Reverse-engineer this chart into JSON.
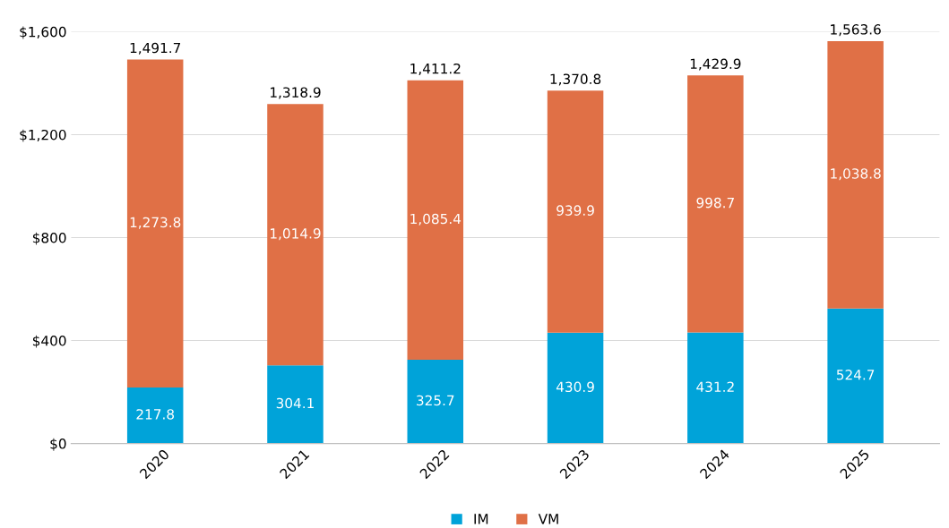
{
  "chart_data": {
    "type": "bar",
    "stacked": true,
    "categories": [
      "2020",
      "2021",
      "2022",
      "2023",
      "2024",
      "2025"
    ],
    "series": [
      {
        "name": "IM",
        "color": "#00a3d9",
        "values": [
          217.8,
          304.1,
          325.7,
          430.9,
          431.2,
          524.7
        ],
        "value_labels": [
          "217.8",
          "304.1",
          "325.7",
          "430.9",
          "431.2",
          "524.7"
        ]
      },
      {
        "name": "VM",
        "color": "#e07046",
        "values": [
          1273.8,
          1014.9,
          1085.4,
          939.9,
          998.7,
          1038.8
        ],
        "value_labels": [
          "1,273.8",
          "1,014.9",
          "1,085.4",
          "939.9",
          "998.7",
          "1,038.8"
        ]
      }
    ],
    "totals": [
      "1,491.7",
      "1,318.9",
      "1,411.2",
      "1,370.8",
      "1,429.9",
      "1,563.6"
    ],
    "ylim": [
      0,
      1600
    ],
    "yticks": [
      {
        "value": 0,
        "label": "$0"
      },
      {
        "value": 400,
        "label": "$400"
      },
      {
        "value": 800,
        "label": "$800"
      },
      {
        "value": 1200,
        "label": "$1,200"
      },
      {
        "value": 1600,
        "label": "$1,600"
      }
    ],
    "grid": "y",
    "legend": "bottom"
  }
}
